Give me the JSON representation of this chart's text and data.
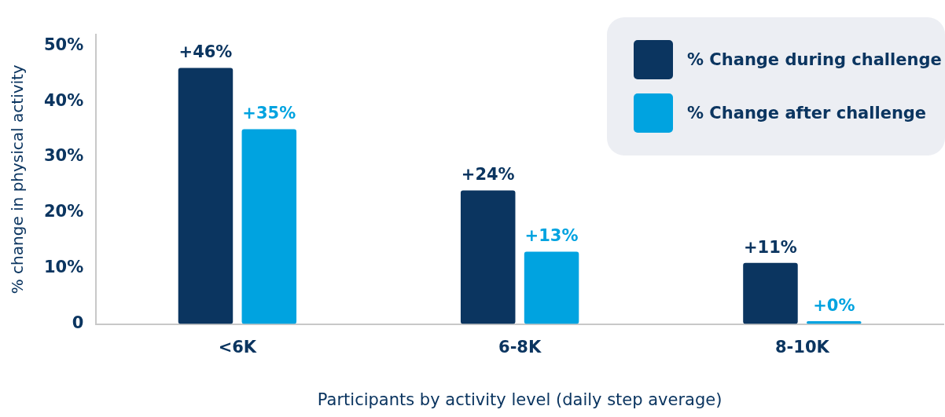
{
  "chart_data": {
    "type": "bar",
    "xlabel": "Participants by activity level (daily step average)",
    "ylabel": "% change in physical activity",
    "categories": [
      "<6K",
      "6-8K",
      "8-10K"
    ],
    "series": [
      {
        "name": "% Change during challenge",
        "color": "#0b3560",
        "values": [
          46,
          24,
          11
        ],
        "value_labels": [
          "+46%",
          "+24%",
          "+11%"
        ]
      },
      {
        "name": "% Change after challenge",
        "color": "#00a3e0",
        "values": [
          35,
          13,
          0.5
        ],
        "value_labels": [
          "+35%",
          "+13%",
          "+0%"
        ]
      }
    ],
    "ylim": [
      0,
      52
    ],
    "yticks": [
      {
        "value": 0,
        "label": "0"
      },
      {
        "value": 10,
        "label": "10%"
      },
      {
        "value": 20,
        "label": "20%"
      },
      {
        "value": 30,
        "label": "30%"
      },
      {
        "value": 40,
        "label": "40%"
      },
      {
        "value": 50,
        "label": "50%"
      }
    ],
    "grid": false,
    "legend": "top right"
  }
}
